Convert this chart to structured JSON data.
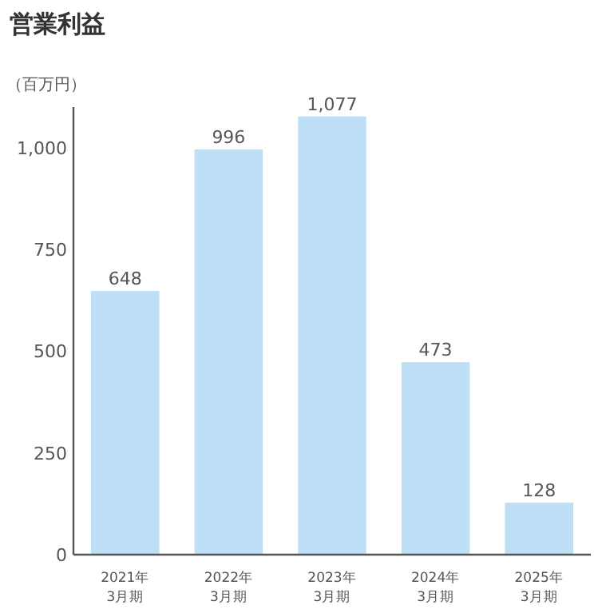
{
  "chart_data": {
    "type": "bar",
    "title": "営業利益",
    "ylabel": "（百万円）",
    "categories": [
      "2021年\n3月期",
      "2022年\n3月期",
      "2023年\n3月期",
      "2024年\n3月期",
      "2025年\n3月期"
    ],
    "values": [
      648,
      996,
      1077,
      473,
      128
    ],
    "color": "#bde0f7",
    "ylim": [
      0,
      1100
    ],
    "yticks": [
      0,
      250,
      500,
      750,
      {
        "value": 1000,
        "label": "1,000"
      }
    ],
    "value_labels": [
      "648",
      "996",
      "1,077",
      "473",
      "128"
    ]
  }
}
